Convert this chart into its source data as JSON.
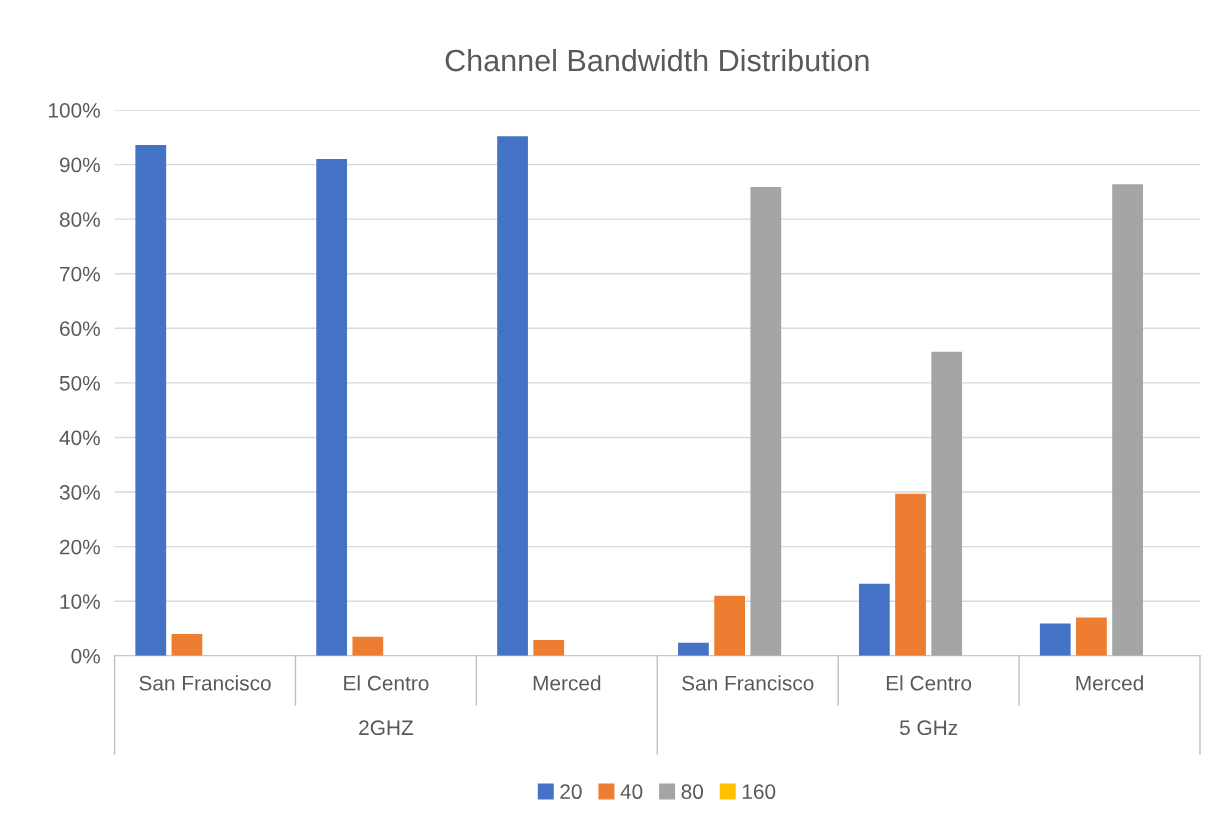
{
  "chart_data": {
    "type": "bar",
    "title": "Channel Bandwidth Distribution",
    "categories": [
      "San Francisco",
      "El Centro",
      "Merced",
      "San Francisco",
      "El Centro",
      "Merced"
    ],
    "series": [
      {
        "name": "20",
        "color": "#4472c4",
        "values": [
          93.6,
          91.0,
          95.2,
          2.4,
          13.2,
          5.9
        ]
      },
      {
        "name": "40",
        "color": "#ed7d31",
        "values": [
          4.0,
          3.5,
          2.9,
          11.0,
          29.7,
          7.0
        ]
      },
      {
        "name": "80",
        "color": "#a5a5a5",
        "values": [
          0,
          0,
          0,
          85.9,
          55.7,
          86.4
        ]
      },
      {
        "name": "160",
        "color": "#ffc000",
        "values": [
          0,
          0,
          0,
          0,
          0,
          0
        ]
      }
    ],
    "ylim": [
      0,
      100
    ],
    "yticks": [
      {
        "value": 0,
        "label": "0%"
      },
      {
        "value": 10,
        "label": "10%"
      },
      {
        "value": 20,
        "label": "20%"
      },
      {
        "value": 30,
        "label": "30%"
      },
      {
        "value": 40,
        "label": "40%"
      },
      {
        "value": 50,
        "label": "50%"
      },
      {
        "value": 60,
        "label": "60%"
      },
      {
        "value": 70,
        "label": "70%"
      },
      {
        "value": 80,
        "label": "80%"
      },
      {
        "value": 90,
        "label": "90%"
      },
      {
        "value": 100,
        "label": "100%"
      }
    ],
    "annotations": [
      "2GHZ",
      "5 GHz"
    ],
    "grid": "y",
    "legend": "bottom"
  }
}
